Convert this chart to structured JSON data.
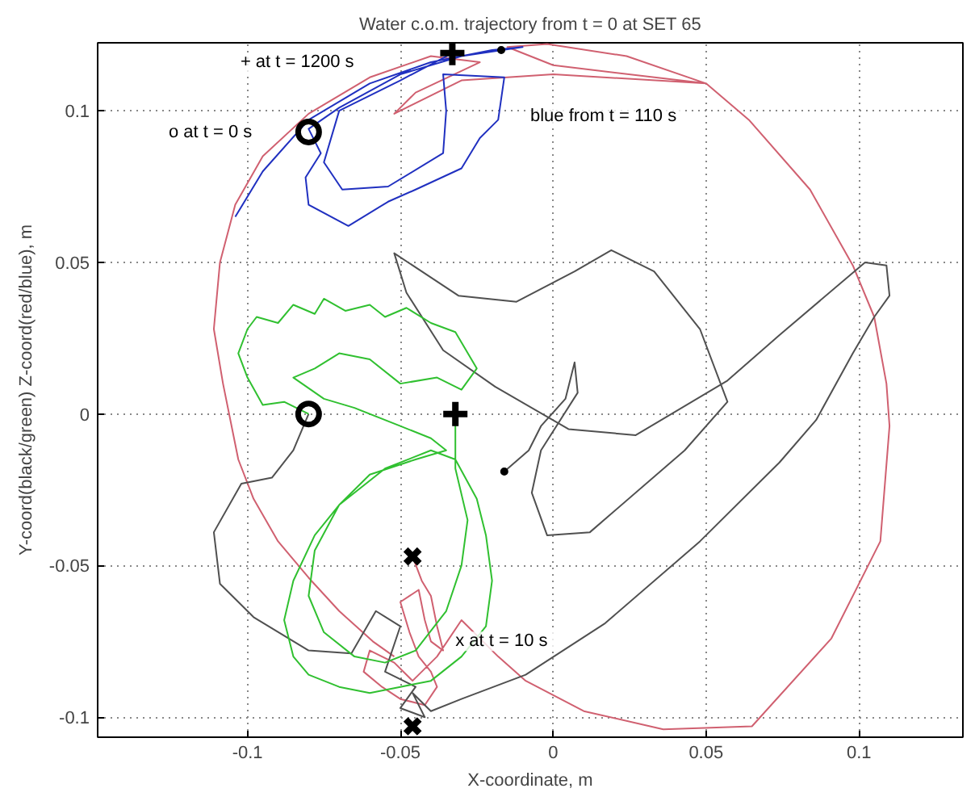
{
  "chart_data": {
    "type": "line",
    "title": "Water c.o.m. trajectory from t = 0 at SET 65",
    "xlabel": "X-coordinate, m",
    "ylabel": "Y-coord(black/green) Z-coord(red/blue), m",
    "xlim": [
      -0.149,
      0.134
    ],
    "ylim": [
      -0.1066,
      0.1224
    ],
    "xticks": [
      -0.1,
      -0.05,
      0,
      0.05,
      0.1
    ],
    "yticks": [
      -0.1,
      -0.05,
      0,
      0.05,
      0.1
    ],
    "grid": true,
    "series": [
      {
        "color": "#d06070",
        "x": [
          -0.046,
          -0.043,
          -0.04,
          -0.038,
          -0.036,
          -0.04,
          -0.042,
          -0.044,
          -0.05,
          -0.047,
          -0.044,
          -0.04,
          -0.038,
          -0.042,
          -0.05,
          -0.056,
          -0.062,
          -0.06,
          -0.052,
          -0.046,
          -0.038,
          -0.03,
          -0.018,
          -0.009,
          0.01,
          0.036,
          0.065,
          0.091,
          0.107,
          0.11,
          0.109,
          0.105,
          0.098,
          0.084,
          0.064,
          0.05,
          0.024,
          -0.002,
          -0.015,
          0.0,
          0.05,
          0.0,
          -0.03,
          -0.052,
          -0.045,
          -0.024,
          -0.04,
          -0.06,
          -0.08,
          -0.095,
          -0.104,
          -0.109,
          -0.111,
          -0.108,
          -0.103,
          -0.098,
          -0.09,
          -0.08,
          -0.07,
          -0.059,
          -0.052
        ],
        "values": [
          -0.047,
          -0.055,
          -0.06,
          -0.07,
          -0.078,
          -0.075,
          -0.068,
          -0.058,
          -0.062,
          -0.072,
          -0.08,
          -0.085,
          -0.09,
          -0.096,
          -0.094,
          -0.09,
          -0.085,
          -0.078,
          -0.082,
          -0.088,
          -0.08,
          -0.068,
          -0.08,
          -0.088,
          -0.098,
          -0.104,
          -0.103,
          -0.074,
          -0.042,
          -0.004,
          0.01,
          0.032,
          0.049,
          0.074,
          0.097,
          0.109,
          0.118,
          0.122,
          0.121,
          0.115,
          0.109,
          0.112,
          0.11,
          0.099,
          0.106,
          0.116,
          0.118,
          0.111,
          0.099,
          0.085,
          0.069,
          0.05,
          0.028,
          0.01,
          -0.015,
          -0.028,
          -0.042,
          -0.054,
          -0.065,
          -0.075,
          -0.08
        ]
      },
      {
        "color": "#2030c0",
        "x": [
          -0.104,
          -0.095,
          -0.08,
          -0.06,
          -0.04,
          -0.02,
          -0.01,
          -0.03,
          -0.05,
          -0.07,
          -0.08,
          -0.076,
          -0.081,
          -0.08,
          -0.067,
          -0.054,
          -0.045,
          -0.03,
          -0.024,
          -0.018,
          -0.016,
          -0.036,
          -0.035,
          -0.036,
          -0.054,
          -0.069,
          -0.075,
          -0.07,
          -0.05,
          -0.033
        ],
        "values": [
          0.065,
          0.08,
          0.097,
          0.109,
          0.116,
          0.12,
          0.121,
          0.118,
          0.112,
          0.101,
          0.094,
          0.086,
          0.078,
          0.069,
          0.062,
          0.07,
          0.074,
          0.081,
          0.091,
          0.097,
          0.111,
          0.112,
          0.1,
          0.086,
          0.075,
          0.074,
          0.083,
          0.1,
          0.11,
          0.119
        ]
      },
      {
        "color": "#505050",
        "x": [
          -0.08,
          -0.085,
          -0.092,
          -0.102,
          -0.111,
          -0.109,
          -0.098,
          -0.08,
          -0.066,
          -0.058,
          -0.05,
          -0.055,
          -0.045,
          -0.05,
          -0.042,
          -0.046,
          -0.04,
          -0.03,
          -0.009,
          0.017,
          0.048,
          0.074,
          0.086,
          0.098,
          0.105,
          0.11,
          0.109,
          0.102,
          0.074,
          0.057,
          0.027,
          0.005,
          -0.019,
          -0.036,
          -0.048,
          -0.052,
          -0.031,
          -0.012,
          0.007,
          0.019,
          0.033,
          0.048,
          0.057,
          0.043,
          0.012,
          -0.002,
          -0.007,
          -0.004,
          0.008,
          0.007,
          0.004,
          -0.004,
          -0.008,
          -0.016
        ],
        "values": [
          0.0,
          -0.012,
          -0.021,
          -0.023,
          -0.039,
          -0.056,
          -0.067,
          -0.078,
          -0.079,
          -0.065,
          -0.07,
          -0.085,
          -0.09,
          -0.097,
          -0.1,
          -0.092,
          -0.098,
          -0.094,
          -0.086,
          -0.069,
          -0.042,
          -0.016,
          -0.002,
          0.02,
          0.032,
          0.039,
          0.049,
          0.05,
          0.026,
          0.011,
          -0.007,
          -0.005,
          0.009,
          0.021,
          0.04,
          0.053,
          0.039,
          0.037,
          0.047,
          0.054,
          0.047,
          0.028,
          0.004,
          -0.012,
          -0.039,
          -0.04,
          -0.026,
          -0.012,
          0.007,
          0.017,
          0.005,
          -0.004,
          -0.012,
          -0.019
        ]
      },
      {
        "color": "#30c030",
        "x": [
          -0.08,
          -0.088,
          -0.095,
          -0.1,
          -0.103,
          -0.1,
          -0.097,
          -0.09,
          -0.085,
          -0.078,
          -0.075,
          -0.068,
          -0.06,
          -0.055,
          -0.048,
          -0.04,
          -0.032,
          -0.025,
          -0.03,
          -0.038,
          -0.05,
          -0.06,
          -0.07,
          -0.078,
          -0.085,
          -0.075,
          -0.065,
          -0.05,
          -0.04,
          -0.035,
          -0.045,
          -0.06,
          -0.07,
          -0.078,
          -0.085,
          -0.088,
          -0.085,
          -0.08,
          -0.07,
          -0.06,
          -0.05,
          -0.04,
          -0.03,
          -0.022,
          -0.02,
          -0.022,
          -0.025,
          -0.032,
          -0.04,
          -0.055,
          -0.07,
          -0.078,
          -0.08,
          -0.075,
          -0.065,
          -0.055,
          -0.045,
          -0.035,
          -0.03,
          -0.028,
          -0.032,
          -0.032
        ],
        "values": [
          0.0,
          0.004,
          0.003,
          0.012,
          0.02,
          0.028,
          0.032,
          0.03,
          0.036,
          0.033,
          0.038,
          0.034,
          0.036,
          0.032,
          0.035,
          0.03,
          0.027,
          0.015,
          0.008,
          0.012,
          0.01,
          0.018,
          0.02,
          0.015,
          0.012,
          0.005,
          0.002,
          -0.004,
          -0.008,
          -0.012,
          -0.015,
          -0.02,
          -0.03,
          -0.04,
          -0.055,
          -0.068,
          -0.08,
          -0.086,
          -0.09,
          -0.092,
          -0.09,
          -0.088,
          -0.08,
          -0.07,
          -0.055,
          -0.04,
          -0.028,
          -0.015,
          -0.012,
          -0.018,
          -0.03,
          -0.045,
          -0.06,
          -0.072,
          -0.08,
          -0.082,
          -0.078,
          -0.065,
          -0.05,
          -0.035,
          -0.018,
          0.0
        ]
      },
      {
        "type": "scatter",
        "marker": "circle",
        "color": "#000000",
        "x": [
          -0.08,
          -0.08
        ],
        "values": [
          0.093,
          0.0
        ]
      },
      {
        "type": "scatter",
        "marker": "cross",
        "color": "#000000",
        "x": [
          -0.033,
          -0.032
        ],
        "values": [
          0.119,
          0.0
        ]
      },
      {
        "type": "scatter",
        "marker": "x",
        "color": "#000000",
        "x": [
          -0.046,
          -0.046
        ],
        "values": [
          -0.047,
          -0.103
        ]
      },
      {
        "type": "scatter",
        "marker": "dot",
        "color": "#000000",
        "x": [
          -0.016,
          -0.017
        ],
        "values": [
          -0.019,
          0.12
        ]
      }
    ],
    "annotations": [
      "+  at t = 1200  s",
      "o  at t = 0  s",
      "blue from t = 110  s",
      {
        "text": "x  at t = 10  s",
        "x": -0.032,
        "y": -0.075
      }
    ]
  }
}
